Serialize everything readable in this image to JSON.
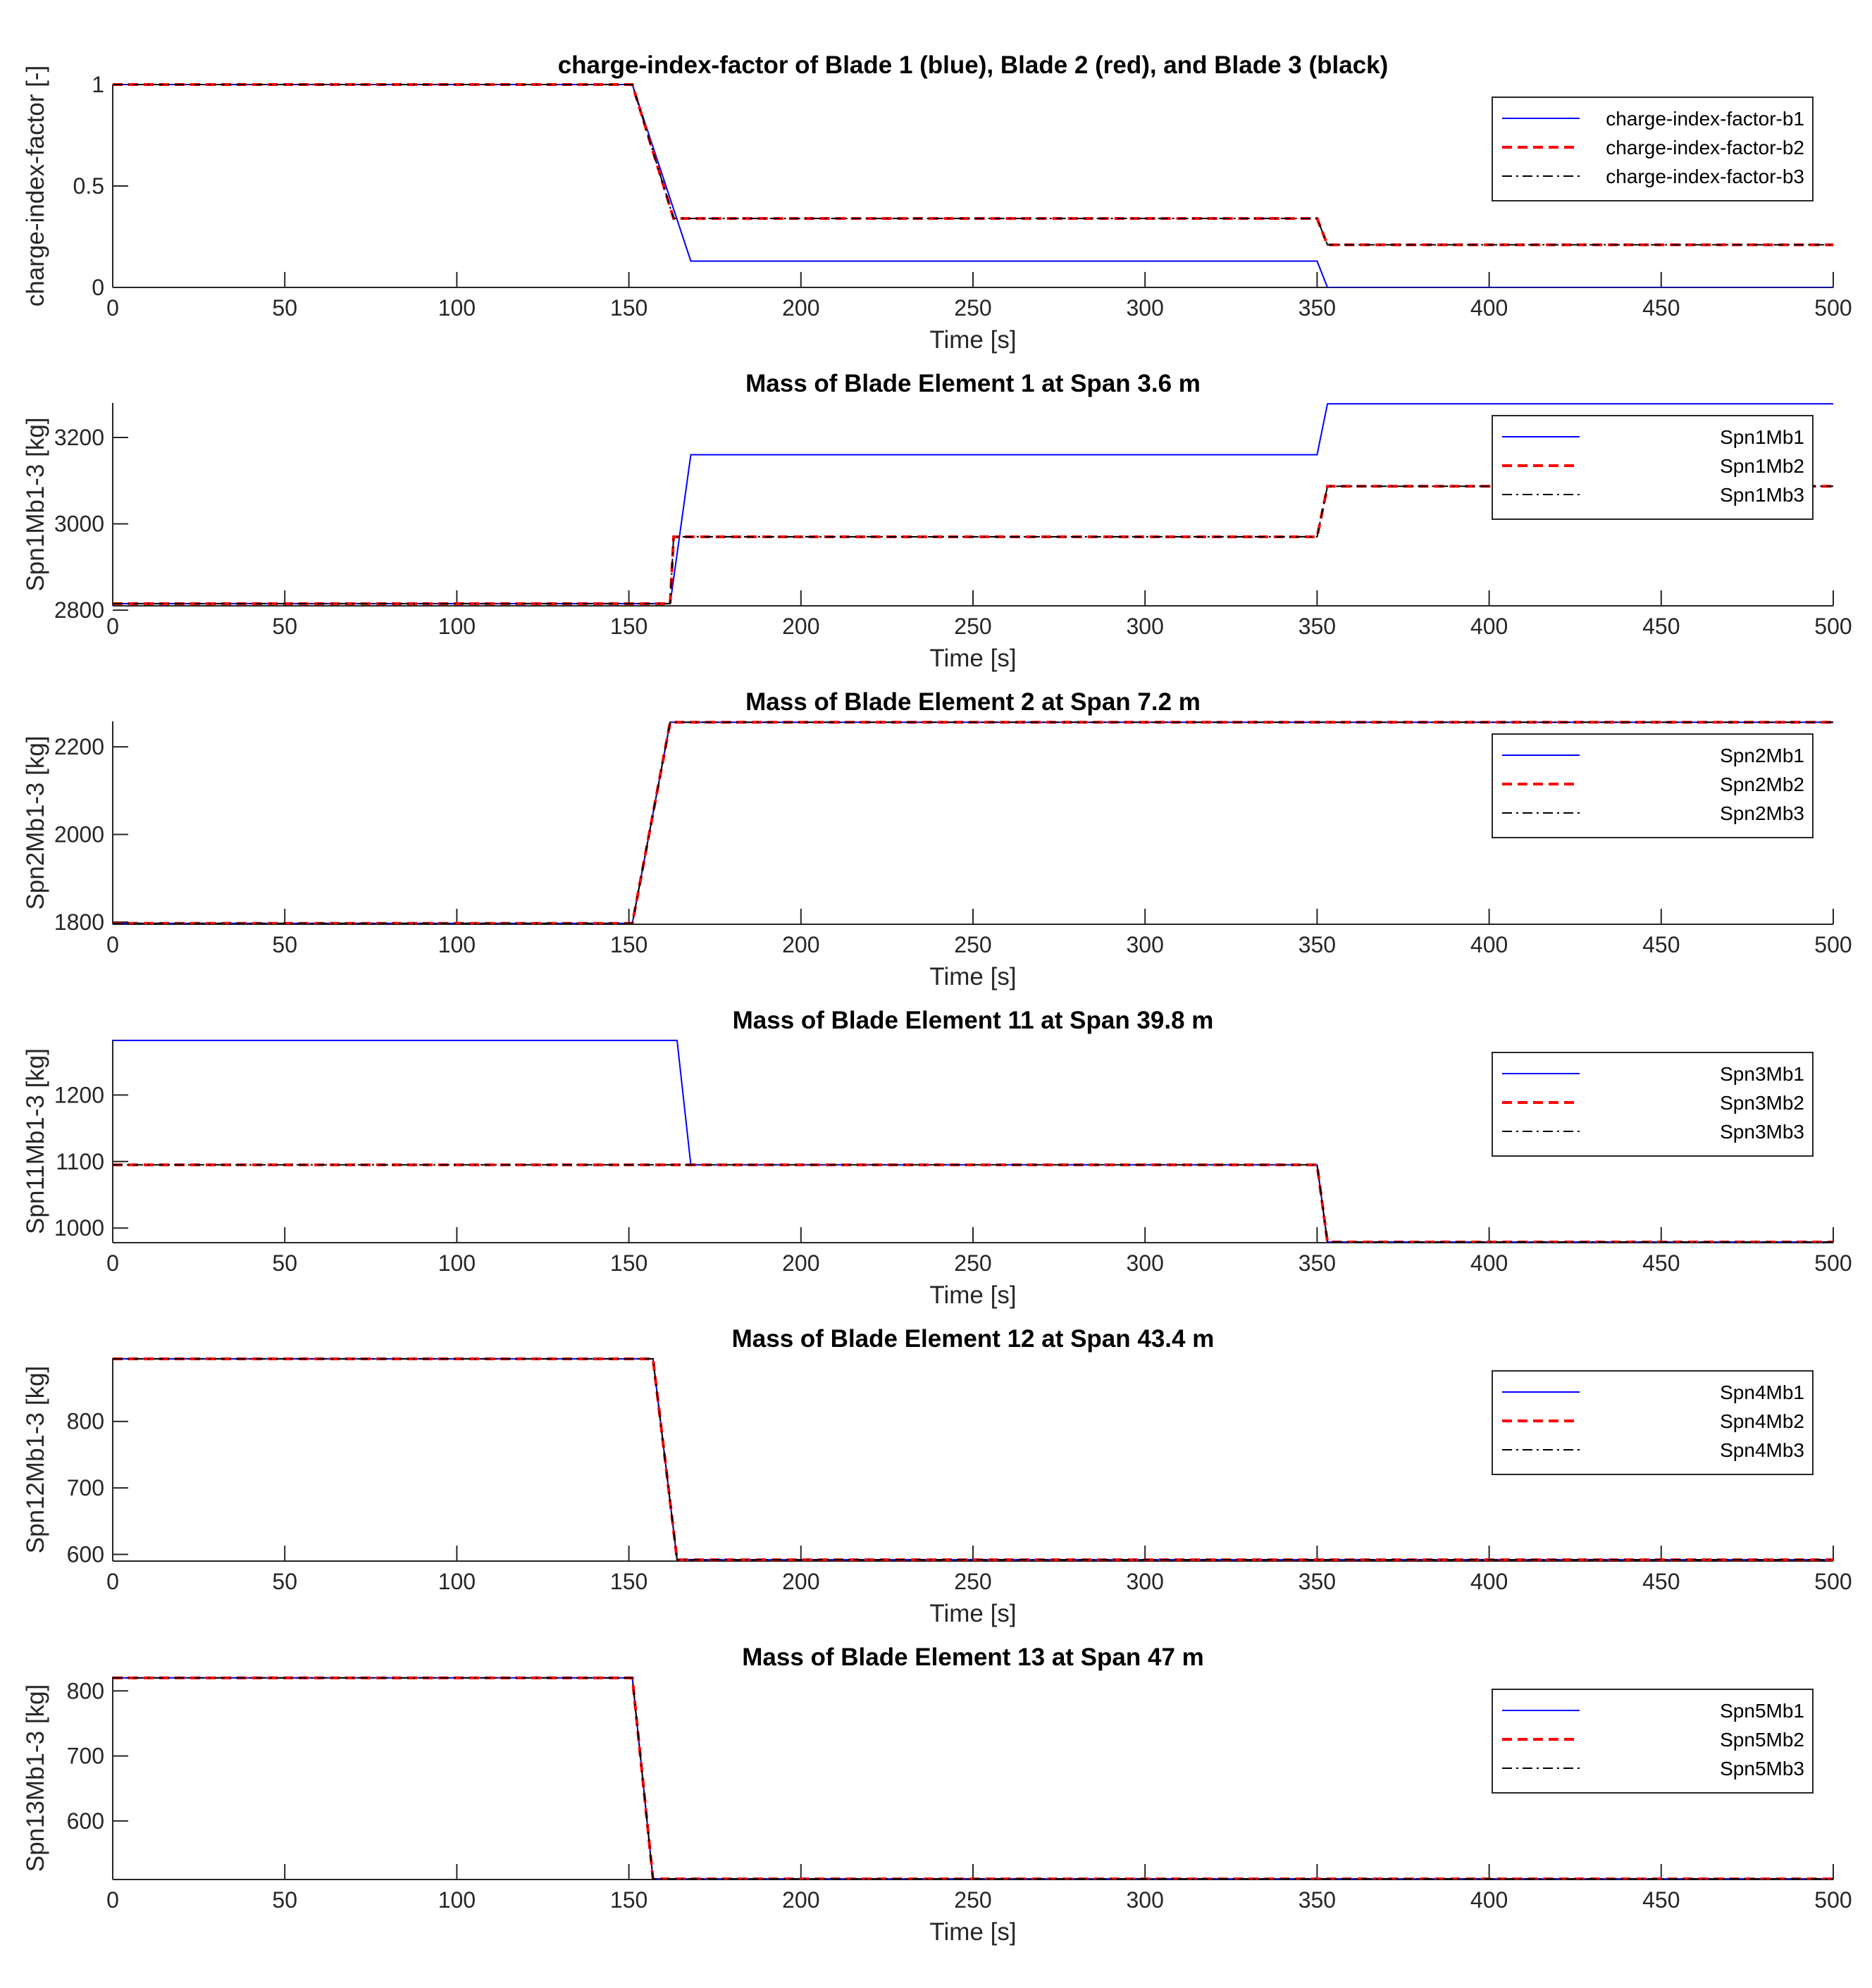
{
  "chart_data": [
    {
      "type": "line",
      "title": "charge-index-factor of Blade 1 (blue), Blade 2 (red), and Blade 3 (black)",
      "xlabel": "Time [s]",
      "ylabel": "charge-index-factor [-]",
      "xlim": [
        0,
        500
      ],
      "ylim": [
        0,
        1
      ],
      "xticks": [
        0,
        50,
        100,
        150,
        200,
        250,
        300,
        350,
        400,
        450,
        500
      ],
      "yticks": [
        0,
        0.5,
        1
      ],
      "ytick_labels": [
        "0",
        "0.5",
        "1"
      ],
      "legend_position": "top-right",
      "grid": false,
      "series": [
        {
          "name": "charge-index-factor-b1",
          "x": [
            0,
            151,
            168,
            350,
            353,
            500
          ],
          "y": [
            1,
            1,
            0.13,
            0.13,
            0,
            0
          ]
        },
        {
          "name": "charge-index-factor-b2",
          "x": [
            0,
            151,
            163,
            350,
            353,
            500
          ],
          "y": [
            1,
            1,
            0.34,
            0.34,
            0.21,
            0.21
          ]
        },
        {
          "name": "charge-index-factor-b3",
          "x": [
            0,
            151,
            163,
            350,
            353,
            500
          ],
          "y": [
            1,
            1,
            0.34,
            0.34,
            0.21,
            0.21
          ]
        }
      ]
    },
    {
      "type": "line",
      "title": "Mass of Blade Element 1 at Span 3.6 m",
      "xlabel": "Time [s]",
      "ylabel": "Spn1Mb1-3 [kg]",
      "xlim": [
        0,
        500
      ],
      "ylim": [
        2810,
        3280
      ],
      "xticks": [
        0,
        50,
        100,
        150,
        200,
        250,
        300,
        350,
        400,
        450,
        500
      ],
      "yticks": [
        2800,
        3000,
        3200
      ],
      "ytick_labels": [
        "2800",
        "3000",
        "3200"
      ],
      "legend_position": "top-right",
      "grid": false,
      "series": [
        {
          "name": "Spn1Mb1",
          "x": [
            0,
            162,
            168,
            350,
            353,
            500
          ],
          "y": [
            2815,
            2815,
            3160,
            3160,
            3278,
            3278
          ]
        },
        {
          "name": "Spn1Mb2",
          "x": [
            0,
            162,
            163,
            350,
            353,
            500
          ],
          "y": [
            2815,
            2815,
            2970,
            2970,
            3087,
            3087
          ]
        },
        {
          "name": "Spn1Mb3",
          "x": [
            0,
            162,
            163,
            350,
            353,
            500
          ],
          "y": [
            2815,
            2815,
            2970,
            2970,
            3087,
            3087
          ]
        }
      ]
    },
    {
      "type": "line",
      "title": "Mass of Blade Element 2 at Span 7.2 m",
      "xlabel": "Time [s]",
      "ylabel": "Spn2Mb1-3 [kg]",
      "xlim": [
        0,
        500
      ],
      "ylim": [
        1795,
        2258
      ],
      "xticks": [
        0,
        50,
        100,
        150,
        200,
        250,
        300,
        350,
        400,
        450,
        500
      ],
      "yticks": [
        1800,
        2000,
        2200
      ],
      "ytick_labels": [
        "1800",
        "2000",
        "2200"
      ],
      "legend_position": "top-right",
      "grid": false,
      "series": [
        {
          "name": "Spn2Mb1",
          "x": [
            0,
            151,
            162,
            500
          ],
          "y": [
            1797,
            1797,
            2256,
            2256
          ]
        },
        {
          "name": "Spn2Mb2",
          "x": [
            0,
            151,
            162,
            500
          ],
          "y": [
            1797,
            1797,
            2256,
            2256
          ]
        },
        {
          "name": "Spn2Mb3",
          "x": [
            0,
            151,
            162,
            500
          ],
          "y": [
            1797,
            1797,
            2256,
            2256
          ]
        }
      ]
    },
    {
      "type": "line",
      "title": "Mass of Blade Element 11 at Span 39.8 m",
      "xlabel": "Time [s]",
      "ylabel": "Spn11Mb1-3 [kg]",
      "xlim": [
        0,
        500
      ],
      "ylim": [
        978,
        1283
      ],
      "xticks": [
        0,
        50,
        100,
        150,
        200,
        250,
        300,
        350,
        400,
        450,
        500
      ],
      "yticks": [
        1000,
        1100,
        1200
      ],
      "ytick_labels": [
        "1000",
        "1100",
        "1200"
      ],
      "legend_position": "top-right",
      "grid": false,
      "series": [
        {
          "name": "Spn3Mb1",
          "x": [
            0,
            164,
            168,
            350,
            353,
            500
          ],
          "y": [
            1282,
            1282,
            1095,
            1095,
            979,
            979
          ]
        },
        {
          "name": "Spn3Mb2",
          "x": [
            0,
            350,
            353,
            500
          ],
          "y": [
            1095,
            1095,
            979,
            979
          ]
        },
        {
          "name": "Spn3Mb3",
          "x": [
            0,
            350,
            353,
            500
          ],
          "y": [
            1095,
            1095,
            979,
            979
          ]
        }
      ]
    },
    {
      "type": "line",
      "title": "Mass of Blade Element 12 at Span 43.4 m",
      "xlabel": "Time [s]",
      "ylabel": "Spn12Mb1-3 [kg]",
      "xlim": [
        0,
        500
      ],
      "ylim": [
        590,
        895
      ],
      "xticks": [
        0,
        50,
        100,
        150,
        200,
        250,
        300,
        350,
        400,
        450,
        500
      ],
      "yticks": [
        600,
        700,
        800
      ],
      "ytick_labels": [
        "600",
        "700",
        "800"
      ],
      "legend_position": "top-right",
      "grid": false,
      "series": [
        {
          "name": "Spn4Mb1",
          "x": [
            0,
            157,
            164,
            500
          ],
          "y": [
            894,
            894,
            592,
            592
          ]
        },
        {
          "name": "Spn4Mb2",
          "x": [
            0,
            157,
            164,
            500
          ],
          "y": [
            894,
            894,
            592,
            592
          ]
        },
        {
          "name": "Spn4Mb3",
          "x": [
            0,
            157,
            164,
            500
          ],
          "y": [
            894,
            894,
            592,
            592
          ]
        }
      ]
    },
    {
      "type": "line",
      "title": "Mass of Blade Element 13 at Span 47 m",
      "xlabel": "Time [s]",
      "ylabel": "Spn13Mb1-3 [kg]",
      "xlim": [
        0,
        500
      ],
      "ylim": [
        510,
        822
      ],
      "xticks": [
        0,
        50,
        100,
        150,
        200,
        250,
        300,
        350,
        400,
        450,
        500
      ],
      "yticks": [
        600,
        700,
        800
      ],
      "ytick_labels": [
        "600",
        "700",
        "800"
      ],
      "legend_position": "top-right",
      "grid": false,
      "series": [
        {
          "name": "Spn5Mb1",
          "x": [
            0,
            151,
            157,
            500
          ],
          "y": [
            820,
            820,
            511,
            511
          ]
        },
        {
          "name": "Spn5Mb2",
          "x": [
            0,
            151,
            157,
            500
          ],
          "y": [
            820,
            820,
            511,
            511
          ]
        },
        {
          "name": "Spn5Mb3",
          "x": [
            0,
            151,
            157,
            500
          ],
          "y": [
            820,
            820,
            511,
            511
          ]
        }
      ]
    }
  ],
  "style": {
    "series_colors": [
      "#0000ff",
      "#ff0000",
      "#000000"
    ],
    "series_dash": [
      "solid",
      "dashed",
      "dash-dot"
    ],
    "axis_color": "#262626"
  }
}
